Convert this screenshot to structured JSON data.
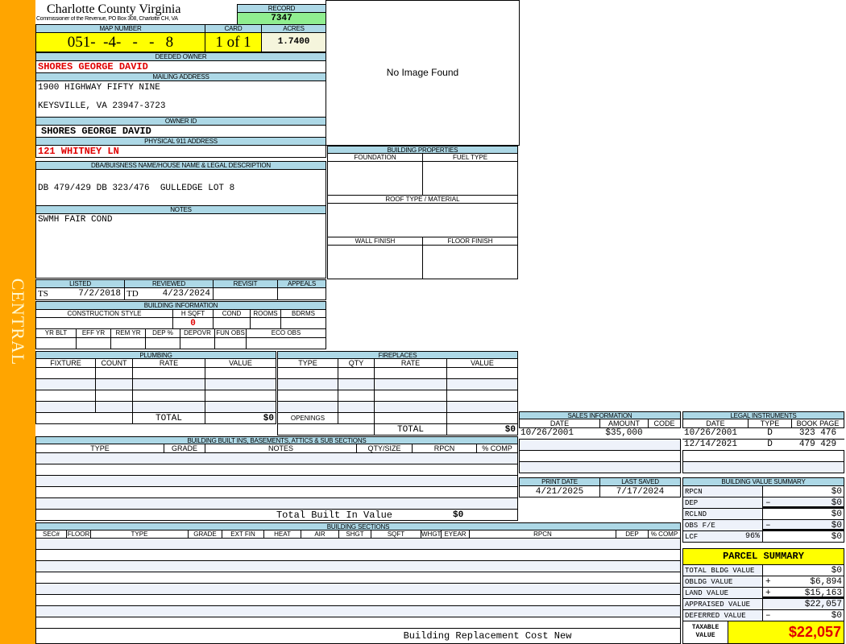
{
  "sidebar": {
    "label": "CENTRAL"
  },
  "header": {
    "title": "Charlotte County Virginia",
    "subtitle": "Commissioner of the Revenue, PO Box 308, Charlotte CH, VA"
  },
  "record": {
    "label": "RECORD",
    "value": "7347"
  },
  "map_number": {
    "label": "MAP NUMBER",
    "value": "051-  -4-   -   -   8"
  },
  "card": {
    "label": "CARD",
    "value": "1 of 1"
  },
  "acres": {
    "label": "ACRES",
    "value": "1.7400"
  },
  "deeded_owner": {
    "label": "DEEDED OWNER",
    "value": "SHORES GEORGE DAVID"
  },
  "mailing_address": {
    "label": "MAILING ADDRESS",
    "line1": "1900 HIGHWAY FIFTY NINE",
    "line2": "KEYSVILLE, VA 23947-3723"
  },
  "owner_id": {
    "label": "OWNER ID",
    "value": "SHORES GEORGE DAVID"
  },
  "physical_address": {
    "label": "PHYSICAL 911 ADDRESS",
    "value": "121 WHITNEY LN"
  },
  "image": {
    "placeholder": "No Image Found"
  },
  "legal_description": {
    "label": "DBA/BUISNESS NAME/HOUSE NAME & LEGAL DESCRIPTION",
    "value": "DB 479/429 DB 323/476  GULLEDGE LOT 8"
  },
  "notes": {
    "label": "NOTES",
    "value": "SWMH FAIR COND"
  },
  "review": {
    "listed_label": "LISTED",
    "reviewed_label": "REVIEWED",
    "revisit_label": "REVISIT",
    "appeals_label": "APPEALS",
    "listed_by": "TS",
    "listed_date": "7/2/2018",
    "reviewed_by": "TD",
    "reviewed_date": "4/23/2024"
  },
  "building_info": {
    "label": "BUILDING INFORMATION",
    "cols1": [
      "CONSTRUCTION STYLE",
      "H SQFT",
      "COND",
      "ROOMS",
      "BDRMS"
    ],
    "hsqft": "0",
    "cols2": [
      "YR BLT",
      "EFF YR",
      "REM YR",
      "DEP %",
      "DEPOVR",
      "FUN OBS",
      "ECO OBS"
    ]
  },
  "building_properties": {
    "label": "BUILDING PROPERTIES",
    "foundation": "FOUNDATION",
    "fuel": "FUEL TYPE",
    "roof": "ROOF TYPE / MATERIAL",
    "wall": "WALL FINISH",
    "floor": "FLOOR FINISH"
  },
  "plumbing": {
    "label": "PLUMBING",
    "cols": [
      "FIXTURE",
      "COUNT",
      "RATE",
      "VALUE"
    ],
    "total_label": "TOTAL",
    "total": "$0"
  },
  "fireplaces": {
    "label": "FIREPLACES",
    "cols": [
      "TYPE",
      "QTY",
      "RATE",
      "VALUE"
    ],
    "openings_label": "OPENINGS",
    "total_label": "TOTAL",
    "total": "$0"
  },
  "sales": {
    "label": "SALES INFORMATION",
    "cols": [
      "DATE",
      "AMOUNT",
      "CODE"
    ],
    "rows": [
      {
        "date": "10/26/2001",
        "amount": "$35,000",
        "code": ""
      }
    ]
  },
  "legal_instruments": {
    "label": "LEGAL INSTRUMENTS",
    "cols": [
      "DATE",
      "TYPE",
      "BOOK PAGE"
    ],
    "rows": [
      {
        "date": "10/26/2001",
        "type": "D",
        "bookpage": "323 476"
      },
      {
        "date": "12/14/2021",
        "type": "D",
        "bookpage": "479 429"
      }
    ]
  },
  "dates": {
    "print_label": "PRINT DATE",
    "print": "4/21/2025",
    "saved_label": "LAST SAVED",
    "saved": "7/17/2024"
  },
  "value_summary": {
    "label": "BUILDING VALUE SUMMARY",
    "rows": [
      {
        "label": "RPCN",
        "sign": "",
        "value": "$0"
      },
      {
        "label": "DEP",
        "sign": "–",
        "value": "$0"
      },
      {
        "label": "RCLND",
        "sign": "",
        "value": "$0"
      },
      {
        "label": "OBS F/E",
        "sign": "–",
        "value": "$0"
      },
      {
        "label": "LCF",
        "pct": "96%",
        "sign": "",
        "value": "$0"
      }
    ]
  },
  "parcel_summary": {
    "label": "PARCEL SUMMARY",
    "rows": [
      {
        "label": "TOTAL BLDG VALUE",
        "sign": "",
        "value": "$0"
      },
      {
        "label": "OBLDG VALUE",
        "sign": "+",
        "value": "$6,894"
      },
      {
        "label": "LAND VALUE",
        "sign": "+",
        "value": "$15,163"
      },
      {
        "label": "APPRAISED VALUE",
        "sign": "",
        "value": "$22,057"
      },
      {
        "label": "DEFERRED VALUE",
        "sign": "–",
        "value": "$0"
      }
    ],
    "taxable_label": "TAXABLE VALUE",
    "taxable": "$22,057"
  },
  "built_ins": {
    "label": "BUILDING BUILT INS, BASEMENTS, ATTICS & SUB SECTIONS",
    "cols": [
      "TYPE",
      "GRADE",
      "NOTES",
      "QTY/SIZE",
      "RPCN",
      "% COMP"
    ],
    "total_label": "Total Built In Value",
    "total": "$0"
  },
  "sections": {
    "label": "BUILDING SECTIONS",
    "cols": [
      "SEC#",
      "FLOOR",
      "TYPE",
      "GRADE",
      "EXT FIN",
      "HEAT",
      "AIR",
      "SHGT",
      "SQFT",
      "WHGT",
      "EYEAR",
      "RPCN",
      "DEP",
      "% COMP"
    ],
    "footer": "Building Replacement Cost New"
  },
  "colors": {
    "sidebar": "#ffa500",
    "header": "#add8e6",
    "highlight": "#ffff00",
    "record": "#90ee90",
    "alert": "#e00000"
  }
}
